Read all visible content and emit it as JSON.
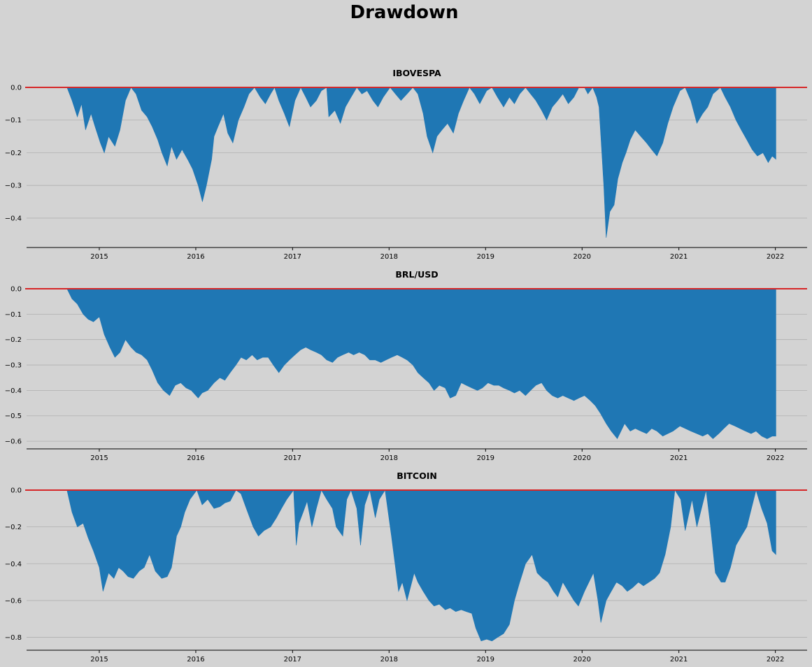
{
  "figure": {
    "title": "Drawdown"
  },
  "colors": {
    "background": "#d3d3d3",
    "fill": "#1f77b4",
    "zero_line": "#d62728",
    "grid": "#b0b0b0"
  },
  "chart_data": [
    {
      "type": "area",
      "title": "IBOVESPA",
      "xlabel": "",
      "ylabel": "",
      "xlim": [
        "2014-04-01",
        "2022-05-01"
      ],
      "ylim": [
        -0.49,
        0.0
      ],
      "xticks": [
        "2015",
        "2016",
        "2017",
        "2018",
        "2019",
        "2020",
        "2021",
        "2022"
      ],
      "yticks": [
        0.0,
        -0.1,
        -0.2,
        -0.3,
        -0.4
      ],
      "ytick_labels": [
        "0.0",
        "−0.1",
        "−0.2",
        "−0.3",
        "−0.4"
      ],
      "grid": true,
      "reference_line": 0.0,
      "x": [
        "2014-09-01",
        "2014-09-20",
        "2014-10-10",
        "2014-10-26",
        "2014-11-10",
        "2014-12-01",
        "2014-12-16",
        "2015-01-05",
        "2015-01-20",
        "2015-02-05",
        "2015-03-01",
        "2015-03-20",
        "2015-04-10",
        "2015-05-01",
        "2015-05-20",
        "2015-06-10",
        "2015-07-01",
        "2015-07-20",
        "2015-08-10",
        "2015-08-26",
        "2015-09-15",
        "2015-10-01",
        "2015-10-20",
        "2015-11-10",
        "2015-12-01",
        "2015-12-20",
        "2016-01-10",
        "2016-01-26",
        "2016-02-10",
        "2016-03-01",
        "2016-03-10",
        "2016-03-25",
        "2016-04-15",
        "2016-05-01",
        "2016-05-20",
        "2016-06-10",
        "2016-07-01",
        "2016-07-20",
        "2016-08-10",
        "2016-09-01",
        "2016-09-20",
        "2016-10-10",
        "2016-10-25",
        "2016-11-10",
        "2016-12-01",
        "2016-12-20",
        "2017-01-10",
        "2017-02-01",
        "2017-02-20",
        "2017-03-10",
        "2017-04-01",
        "2017-04-20",
        "2017-05-10",
        "2017-05-18",
        "2017-06-10",
        "2017-07-01",
        "2017-07-20",
        "2017-08-10",
        "2017-09-01",
        "2017-09-20",
        "2017-10-10",
        "2017-11-01",
        "2017-11-20",
        "2017-12-10",
        "2018-01-05",
        "2018-01-25",
        "2018-02-15",
        "2018-03-10",
        "2018-04-01",
        "2018-04-20",
        "2018-05-10",
        "2018-05-25",
        "2018-06-15",
        "2018-07-01",
        "2018-07-20",
        "2018-08-10",
        "2018-09-01",
        "2018-09-20",
        "2018-10-10",
        "2018-11-01",
        "2018-11-20",
        "2018-12-10",
        "2019-01-05",
        "2019-01-25",
        "2019-02-15",
        "2019-03-10",
        "2019-04-01",
        "2019-04-20",
        "2019-05-10",
        "2019-06-01",
        "2019-06-20",
        "2019-07-10",
        "2019-08-01",
        "2019-08-20",
        "2019-09-10",
        "2019-10-01",
        "2019-10-20",
        "2019-11-10",
        "2019-12-01",
        "2019-12-20",
        "2020-01-10",
        "2020-01-23",
        "2020-02-10",
        "2020-02-25",
        "2020-03-05",
        "2020-03-12",
        "2020-03-23",
        "2020-04-01",
        "2020-04-15",
        "2020-05-01",
        "2020-05-15",
        "2020-06-01",
        "2020-06-15",
        "2020-07-01",
        "2020-07-20",
        "2020-08-10",
        "2020-09-01",
        "2020-09-20",
        "2020-10-10",
        "2020-11-01",
        "2020-11-20",
        "2020-12-10",
        "2021-01-05",
        "2021-01-25",
        "2021-02-15",
        "2021-03-10",
        "2021-04-01",
        "2021-04-20",
        "2021-05-10",
        "2021-06-07",
        "2021-06-25",
        "2021-07-15",
        "2021-08-05",
        "2021-08-25",
        "2021-09-15",
        "2021-10-05",
        "2021-10-25",
        "2021-11-15",
        "2021-12-05",
        "2021-12-20",
        "2022-01-03"
      ],
      "y": [
        0.0,
        -0.04,
        -0.09,
        -0.05,
        -0.13,
        -0.08,
        -0.12,
        -0.17,
        -0.2,
        -0.15,
        -0.18,
        -0.13,
        -0.04,
        0.0,
        -0.02,
        -0.07,
        -0.09,
        -0.12,
        -0.16,
        -0.2,
        -0.24,
        -0.18,
        -0.22,
        -0.19,
        -0.22,
        -0.25,
        -0.3,
        -0.35,
        -0.3,
        -0.22,
        -0.15,
        -0.12,
        -0.08,
        -0.14,
        -0.17,
        -0.1,
        -0.06,
        -0.02,
        0.0,
        -0.03,
        -0.05,
        -0.02,
        0.0,
        -0.04,
        -0.08,
        -0.12,
        -0.04,
        0.0,
        -0.03,
        -0.06,
        -0.04,
        -0.01,
        0.0,
        -0.09,
        -0.07,
        -0.11,
        -0.06,
        -0.03,
        0.0,
        -0.02,
        -0.01,
        -0.04,
        -0.06,
        -0.03,
        0.0,
        -0.02,
        -0.04,
        -0.02,
        0.0,
        -0.02,
        -0.08,
        -0.15,
        -0.2,
        -0.15,
        -0.13,
        -0.11,
        -0.14,
        -0.08,
        -0.04,
        0.0,
        -0.02,
        -0.05,
        -0.01,
        0.0,
        -0.03,
        -0.06,
        -0.03,
        -0.05,
        -0.02,
        0.0,
        -0.02,
        -0.04,
        -0.07,
        -0.1,
        -0.06,
        -0.04,
        -0.02,
        -0.05,
        -0.03,
        0.0,
        0.0,
        -0.02,
        0.0,
        -0.03,
        -0.06,
        -0.15,
        -0.3,
        -0.46,
        -0.38,
        -0.36,
        -0.28,
        -0.23,
        -0.2,
        -0.16,
        -0.13,
        -0.15,
        -0.17,
        -0.19,
        -0.21,
        -0.17,
        -0.11,
        -0.06,
        -0.01,
        0.0,
        -0.04,
        -0.11,
        -0.08,
        -0.06,
        -0.02,
        0.0,
        -0.03,
        -0.06,
        -0.1,
        -0.13,
        -0.16,
        -0.19,
        -0.21,
        -0.2,
        -0.23,
        -0.21,
        -0.22
      ]
    },
    {
      "type": "area",
      "title": "BRL/USD",
      "xlabel": "",
      "ylabel": "",
      "xlim": [
        "2014-04-01",
        "2022-05-01"
      ],
      "ylim": [
        -0.63,
        0.0
      ],
      "xticks": [
        "2015",
        "2016",
        "2017",
        "2018",
        "2019",
        "2020",
        "2021",
        "2022"
      ],
      "yticks": [
        0.0,
        -0.1,
        -0.2,
        -0.3,
        -0.4,
        -0.5,
        -0.6
      ],
      "ytick_labels": [
        "0.0",
        "−0.1",
        "−0.2",
        "−0.3",
        "−0.4",
        "−0.5",
        "−0.6"
      ],
      "grid": true,
      "reference_line": 0.0,
      "x": [
        "2014-09-01",
        "2014-09-20",
        "2014-10-10",
        "2014-11-01",
        "2014-11-20",
        "2014-12-10",
        "2015-01-01",
        "2015-01-20",
        "2015-02-10",
        "2015-03-01",
        "2015-03-20",
        "2015-04-10",
        "2015-05-01",
        "2015-05-20",
        "2015-06-10",
        "2015-07-01",
        "2015-07-20",
        "2015-08-10",
        "2015-09-01",
        "2015-09-24",
        "2015-10-15",
        "2015-11-05",
        "2015-11-25",
        "2015-12-15",
        "2016-01-10",
        "2016-01-25",
        "2016-02-15",
        "2016-03-10",
        "2016-04-01",
        "2016-04-20",
        "2016-05-10",
        "2016-06-01",
        "2016-06-20",
        "2016-07-10",
        "2016-08-01",
        "2016-08-20",
        "2016-09-10",
        "2016-10-01",
        "2016-10-20",
        "2016-11-10",
        "2016-12-01",
        "2016-12-20",
        "2017-01-10",
        "2017-02-01",
        "2017-02-20",
        "2017-03-10",
        "2017-04-01",
        "2017-04-20",
        "2017-05-10",
        "2017-06-01",
        "2017-06-20",
        "2017-07-10",
        "2017-08-01",
        "2017-08-20",
        "2017-09-10",
        "2017-10-01",
        "2017-10-20",
        "2017-11-10",
        "2017-12-01",
        "2017-12-20",
        "2018-01-10",
        "2018-02-01",
        "2018-02-20",
        "2018-03-10",
        "2018-04-01",
        "2018-04-20",
        "2018-05-10",
        "2018-06-01",
        "2018-06-20",
        "2018-07-10",
        "2018-08-01",
        "2018-08-20",
        "2018-09-10",
        "2018-10-01",
        "2018-10-20",
        "2018-11-10",
        "2018-12-01",
        "2018-12-20",
        "2019-01-10",
        "2019-02-01",
        "2019-02-20",
        "2019-03-10",
        "2019-04-01",
        "2019-04-20",
        "2019-05-10",
        "2019-06-01",
        "2019-06-20",
        "2019-07-10",
        "2019-08-01",
        "2019-08-20",
        "2019-09-10",
        "2019-10-01",
        "2019-10-20",
        "2019-11-10",
        "2019-12-01",
        "2019-12-20",
        "2020-01-10",
        "2020-02-01",
        "2020-02-20",
        "2020-03-10",
        "2020-04-01",
        "2020-04-20",
        "2020-05-13",
        "2020-06-01",
        "2020-06-10",
        "2020-07-01",
        "2020-07-20",
        "2020-08-10",
        "2020-09-01",
        "2020-09-20",
        "2020-10-10",
        "2020-11-01",
        "2020-11-20",
        "2020-12-10",
        "2021-01-05",
        "2021-01-25",
        "2021-02-15",
        "2021-03-10",
        "2021-04-01",
        "2021-04-20",
        "2021-05-10",
        "2021-06-01",
        "2021-06-20",
        "2021-07-10",
        "2021-08-01",
        "2021-08-20",
        "2021-09-10",
        "2021-10-01",
        "2021-10-20",
        "2021-11-10",
        "2021-12-01",
        "2021-12-20",
        "2022-01-03"
      ],
      "y": [
        0.0,
        -0.04,
        -0.06,
        -0.1,
        -0.12,
        -0.13,
        -0.11,
        -0.18,
        -0.23,
        -0.27,
        -0.25,
        -0.2,
        -0.23,
        -0.25,
        -0.26,
        -0.28,
        -0.32,
        -0.37,
        -0.4,
        -0.42,
        -0.38,
        -0.37,
        -0.39,
        -0.4,
        -0.43,
        -0.41,
        -0.4,
        -0.37,
        -0.35,
        -0.36,
        -0.33,
        -0.3,
        -0.27,
        -0.28,
        -0.26,
        -0.28,
        -0.27,
        -0.27,
        -0.3,
        -0.33,
        -0.3,
        -0.28,
        -0.26,
        -0.24,
        -0.23,
        -0.24,
        -0.25,
        -0.26,
        -0.28,
        -0.29,
        -0.27,
        -0.26,
        -0.25,
        -0.26,
        -0.25,
        -0.26,
        -0.28,
        -0.28,
        -0.29,
        -0.28,
        -0.27,
        -0.26,
        -0.27,
        -0.28,
        -0.3,
        -0.33,
        -0.35,
        -0.37,
        -0.4,
        -0.38,
        -0.39,
        -0.43,
        -0.42,
        -0.37,
        -0.38,
        -0.39,
        -0.4,
        -0.39,
        -0.37,
        -0.38,
        -0.38,
        -0.39,
        -0.4,
        -0.41,
        -0.4,
        -0.42,
        -0.4,
        -0.38,
        -0.37,
        -0.4,
        -0.42,
        -0.43,
        -0.42,
        -0.43,
        -0.44,
        -0.43,
        -0.42,
        -0.44,
        -0.46,
        -0.49,
        -0.53,
        -0.56,
        -0.59,
        -0.55,
        -0.53,
        -0.56,
        -0.55,
        -0.56,
        -0.57,
        -0.55,
        -0.56,
        -0.58,
        -0.57,
        -0.56,
        -0.54,
        -0.55,
        -0.56,
        -0.57,
        -0.58,
        -0.57,
        -0.59,
        -0.57,
        -0.55,
        -0.53,
        -0.54,
        -0.55,
        -0.56,
        -0.57,
        -0.56,
        -0.58,
        -0.59,
        -0.58,
        -0.58
      ]
    },
    {
      "type": "area",
      "title": "BITCOIN",
      "xlabel": "",
      "ylabel": "",
      "xlim": [
        "2014-04-01",
        "2022-05-01"
      ],
      "ylim": [
        -0.87,
        0.0
      ],
      "xticks": [
        "2015",
        "2016",
        "2017",
        "2018",
        "2019",
        "2020",
        "2021",
        "2022"
      ],
      "yticks": [
        0.0,
        -0.2,
        -0.4,
        -0.6,
        -0.8
      ],
      "ytick_labels": [
        "0.0",
        "−0.2",
        "−0.4",
        "−0.6",
        "−0.8"
      ],
      "grid": true,
      "reference_line": 0.0,
      "x": [
        "2014-09-01",
        "2014-09-20",
        "2014-10-10",
        "2014-11-01",
        "2014-11-20",
        "2014-12-10",
        "2015-01-01",
        "2015-01-15",
        "2015-02-05",
        "2015-02-25",
        "2015-03-15",
        "2015-04-01",
        "2015-04-20",
        "2015-05-10",
        "2015-06-01",
        "2015-06-20",
        "2015-07-10",
        "2015-08-01",
        "2015-08-25",
        "2015-09-15",
        "2015-10-01",
        "2015-10-20",
        "2015-11-05",
        "2015-11-20",
        "2015-12-10",
        "2016-01-05",
        "2016-01-25",
        "2016-02-15",
        "2016-03-10",
        "2016-04-01",
        "2016-04-20",
        "2016-05-10",
        "2016-06-01",
        "2016-06-20",
        "2016-07-10",
        "2016-08-05",
        "2016-08-25",
        "2016-09-15",
        "2016-10-10",
        "2016-11-01",
        "2016-11-20",
        "2016-12-10",
        "2017-01-05",
        "2017-01-15",
        "2017-01-25",
        "2017-02-10",
        "2017-02-25",
        "2017-03-15",
        "2017-04-01",
        "2017-04-20",
        "2017-05-10",
        "2017-06-01",
        "2017-06-15",
        "2017-07-10",
        "2017-07-25",
        "2017-08-10",
        "2017-09-01",
        "2017-09-15",
        "2017-10-01",
        "2017-10-20",
        "2017-11-10",
        "2017-11-25",
        "2017-12-17",
        "2018-01-10",
        "2018-02-06",
        "2018-02-20",
        "2018-03-10",
        "2018-04-06",
        "2018-04-20",
        "2018-05-10",
        "2018-06-01",
        "2018-06-20",
        "2018-07-10",
        "2018-08-01",
        "2018-08-20",
        "2018-09-10",
        "2018-10-01",
        "2018-10-20",
        "2018-11-10",
        "2018-11-25",
        "2018-12-15",
        "2019-01-05",
        "2019-01-25",
        "2019-02-15",
        "2019-03-10",
        "2019-04-01",
        "2019-04-20",
        "2019-05-10",
        "2019-06-01",
        "2019-06-26",
        "2019-07-15",
        "2019-08-05",
        "2019-08-25",
        "2019-09-15",
        "2019-10-01",
        "2019-10-20",
        "2019-11-10",
        "2019-12-01",
        "2019-12-18",
        "2020-01-10",
        "2020-02-13",
        "2020-03-01",
        "2020-03-12",
        "2020-04-01",
        "2020-04-20",
        "2020-05-10",
        "2020-06-01",
        "2020-06-20",
        "2020-07-10",
        "2020-08-01",
        "2020-08-20",
        "2020-09-10",
        "2020-10-01",
        "2020-10-20",
        "2020-11-10",
        "2020-12-01",
        "2020-12-17",
        "2021-01-08",
        "2021-01-25",
        "2021-02-20",
        "2021-03-10",
        "2021-04-14",
        "2021-05-01",
        "2021-05-19",
        "2021-06-10",
        "2021-06-25",
        "2021-07-15",
        "2021-08-05",
        "2021-08-25",
        "2021-09-15",
        "2021-10-20",
        "2021-11-10",
        "2021-12-01",
        "2021-12-20",
        "2022-01-03"
      ],
      "y": [
        0.0,
        -0.12,
        -0.2,
        -0.18,
        -0.26,
        -0.33,
        -0.42,
        -0.55,
        -0.45,
        -0.48,
        -0.42,
        -0.44,
        -0.47,
        -0.48,
        -0.44,
        -0.42,
        -0.35,
        -0.44,
        -0.48,
        -0.47,
        -0.42,
        -0.25,
        -0.2,
        -0.12,
        -0.05,
        0.0,
        -0.08,
        -0.05,
        -0.1,
        -0.09,
        -0.07,
        -0.06,
        0.0,
        -0.02,
        -0.1,
        -0.2,
        -0.25,
        -0.22,
        -0.2,
        -0.15,
        -0.1,
        -0.05,
        0.0,
        -0.3,
        -0.18,
        -0.12,
        -0.06,
        -0.2,
        -0.1,
        0.0,
        -0.05,
        -0.1,
        -0.2,
        -0.25,
        -0.05,
        0.0,
        -0.1,
        -0.3,
        -0.08,
        0.0,
        -0.15,
        -0.05,
        0.0,
        -0.25,
        -0.55,
        -0.5,
        -0.6,
        -0.45,
        -0.5,
        -0.55,
        -0.6,
        -0.63,
        -0.62,
        -0.65,
        -0.64,
        -0.66,
        -0.65,
        -0.66,
        -0.67,
        -0.75,
        -0.82,
        -0.81,
        -0.82,
        -0.8,
        -0.78,
        -0.73,
        -0.6,
        -0.5,
        -0.4,
        -0.35,
        -0.45,
        -0.48,
        -0.5,
        -0.55,
        -0.58,
        -0.5,
        -0.55,
        -0.6,
        -0.63,
        -0.55,
        -0.45,
        -0.6,
        -0.72,
        -0.6,
        -0.55,
        -0.5,
        -0.52,
        -0.55,
        -0.53,
        -0.5,
        -0.52,
        -0.5,
        -0.48,
        -0.45,
        -0.35,
        -0.2,
        0.0,
        -0.05,
        -0.22,
        -0.05,
        -0.2,
        0.0,
        -0.2,
        -0.45,
        -0.5,
        -0.5,
        -0.42,
        -0.3,
        -0.25,
        -0.2,
        0.0,
        -0.1,
        -0.18,
        -0.33,
        -0.35
      ]
    }
  ]
}
